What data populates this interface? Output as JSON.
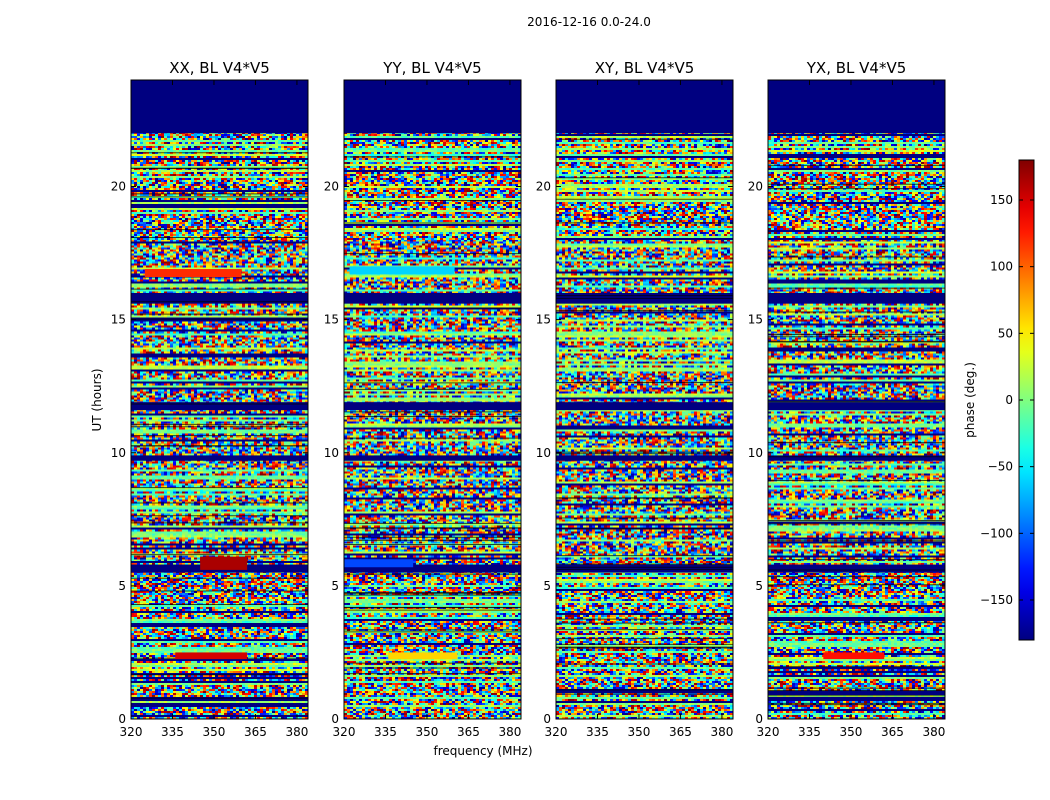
{
  "chart_data": {
    "type": "heatmap",
    "suptitle": "2016-12-16 0.0-24.0",
    "xlabel": "frequency (MHz)",
    "ylabel": "UT (hours)",
    "x_range": [
      320,
      384
    ],
    "y_range": [
      0,
      24
    ],
    "x_ticks": [
      320,
      335,
      350,
      365,
      380
    ],
    "y_ticks": [
      0,
      5,
      10,
      15,
      20
    ],
    "panels": [
      {
        "title": "XX, BL V4*V5",
        "polarization": "XX",
        "features": [
          {
            "t0": 2.25,
            "t1": 2.5,
            "f0": 336,
            "f1": 362,
            "phase": 150
          },
          {
            "t0": 5.6,
            "t1": 6.1,
            "f0": 345,
            "f1": 362,
            "phase": 165
          },
          {
            "t0": 16.6,
            "t1": 16.9,
            "f0": 325,
            "f1": 360,
            "phase": 120
          }
        ]
      },
      {
        "title": "YY, BL V4*V5",
        "polarization": "YY",
        "features": [
          {
            "t0": 2.25,
            "t1": 2.5,
            "f0": 336,
            "f1": 361,
            "phase": 60
          },
          {
            "t0": 5.7,
            "t1": 6.0,
            "f0": 320,
            "f1": 345,
            "phase": -110
          },
          {
            "t0": 16.7,
            "t1": 17.0,
            "f0": 322,
            "f1": 360,
            "phase": -60
          }
        ]
      },
      {
        "title": "XY, BL V4*V5",
        "polarization": "XY",
        "features": []
      },
      {
        "title": "YX, BL V4*V5",
        "polarization": "YX",
        "features": [
          {
            "t0": 2.25,
            "t1": 2.5,
            "f0": 340,
            "f1": 362,
            "phase": 130
          }
        ]
      }
    ],
    "no_data_ranges_hours": [
      [
        22,
        24
      ],
      [
        15.6,
        16.0
      ],
      [
        11.6,
        11.9
      ],
      [
        5.5,
        5.8
      ],
      [
        9.7,
        9.9
      ]
    ],
    "colorbar": {
      "label": "phase (deg.)",
      "range": [
        -180,
        180
      ],
      "ticks": [
        150,
        100,
        50,
        0,
        -50,
        -100,
        -150
      ],
      "colormap": "jet"
    }
  }
}
